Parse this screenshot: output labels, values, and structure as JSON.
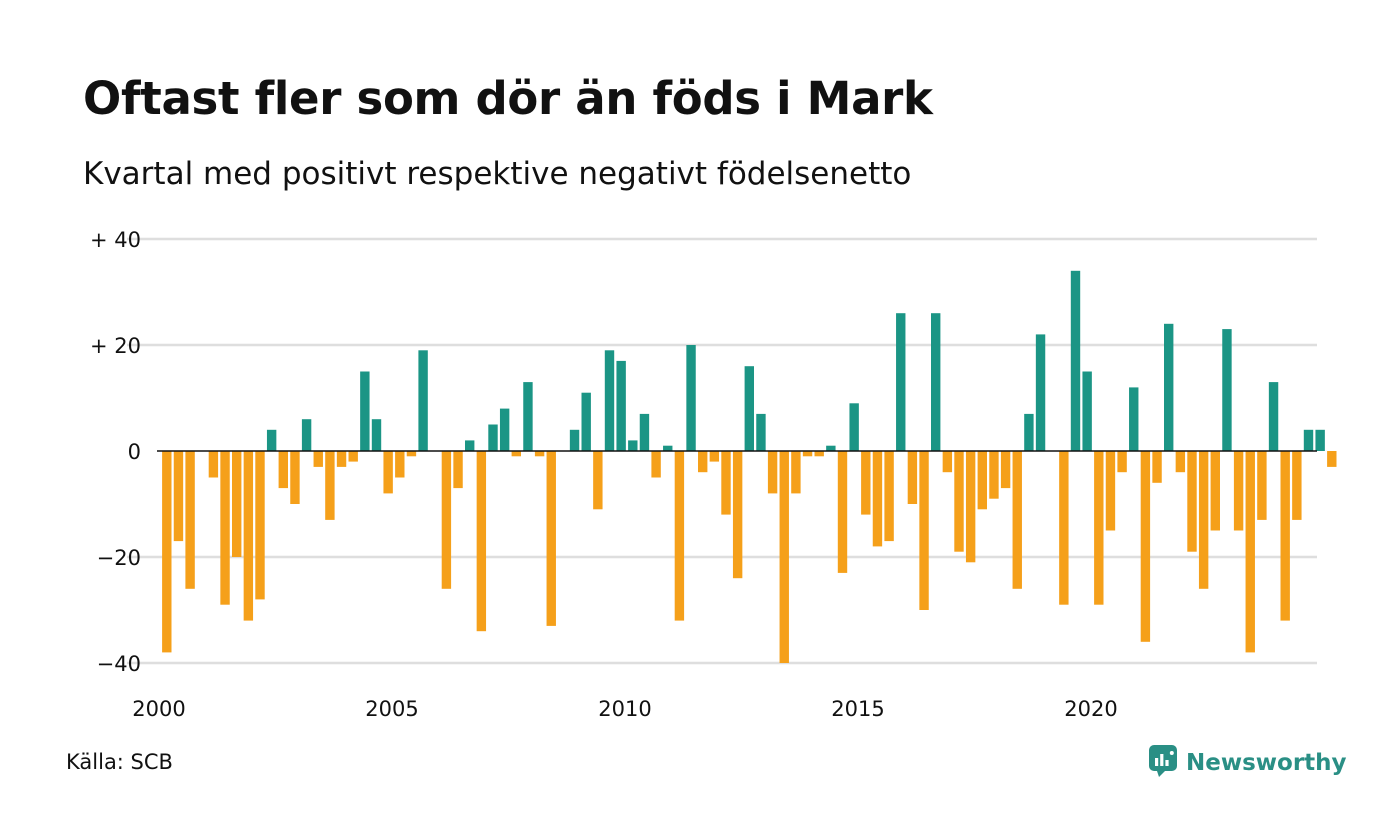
{
  "header": {
    "title": "Oftast fler som dör än föds i Mark",
    "subtitle": "Kvartal med positivt respektive negativt födelsenetto"
  },
  "footer": {
    "source": "Källa: SCB",
    "brand": "Newsworthy",
    "brand_icon": "newsworthy-logo-icon"
  },
  "chart_data": {
    "type": "bar",
    "x_unit": "quarter",
    "start": "2000 Q1",
    "categories": [
      "2000 Q1",
      "2000 Q2",
      "2000 Q3",
      "2000 Q4",
      "2001 Q1",
      "2001 Q2",
      "2001 Q3",
      "2001 Q4",
      "2002 Q1",
      "2002 Q2",
      "2002 Q3",
      "2002 Q4",
      "2003 Q1",
      "2003 Q2",
      "2003 Q3",
      "2003 Q4",
      "2004 Q1",
      "2004 Q2",
      "2004 Q3",
      "2004 Q4",
      "2005 Q1",
      "2005 Q2",
      "2005 Q3",
      "2005 Q4",
      "2006 Q1",
      "2006 Q2",
      "2006 Q3",
      "2006 Q4",
      "2007 Q1",
      "2007 Q2",
      "2007 Q3",
      "2007 Q4",
      "2008 Q1",
      "2008 Q2",
      "2008 Q3",
      "2008 Q4",
      "2009 Q1",
      "2009 Q2",
      "2009 Q3",
      "2009 Q4",
      "2010 Q1",
      "2010 Q2",
      "2010 Q3",
      "2010 Q4",
      "2011 Q1",
      "2011 Q2",
      "2011 Q3",
      "2011 Q4",
      "2012 Q1",
      "2012 Q2",
      "2012 Q3",
      "2012 Q4",
      "2013 Q1",
      "2013 Q2",
      "2013 Q3",
      "2013 Q4",
      "2014 Q1",
      "2014 Q2",
      "2014 Q3",
      "2014 Q4",
      "2015 Q1",
      "2015 Q2",
      "2015 Q3",
      "2015 Q4",
      "2016 Q1",
      "2016 Q2",
      "2016 Q3",
      "2016 Q4",
      "2017 Q1",
      "2017 Q2",
      "2017 Q3",
      "2017 Q4",
      "2018 Q1",
      "2018 Q2",
      "2018 Q3",
      "2018 Q4",
      "2019 Q1",
      "2019 Q2",
      "2019 Q3",
      "2019 Q4",
      "2020 Q1",
      "2020 Q2",
      "2020 Q3",
      "2020 Q4",
      "2021 Q1",
      "2021 Q2",
      "2021 Q3",
      "2021 Q4",
      "2022 Q1",
      "2022 Q2",
      "2022 Q3",
      "2022 Q4",
      "2023 Q1",
      "2023 Q2",
      "2023 Q3",
      "2023 Q4",
      "2024 Q1",
      "2024 Q2",
      "2024 Q3",
      "2024 Q4",
      "2025 Q1",
      "2025 Q2",
      "2025 Q3"
    ],
    "values": [
      -38,
      -17,
      -26,
      0,
      -5,
      -29,
      -20,
      -32,
      -28,
      4,
      -7,
      -10,
      6,
      -3,
      -13,
      -3,
      -2,
      15,
      6,
      -8,
      -5,
      -1,
      19,
      0,
      -26,
      -7,
      2,
      -34,
      5,
      8,
      -1,
      13,
      -1,
      -33,
      0,
      4,
      11,
      -11,
      19,
      17,
      2,
      7,
      -5,
      1,
      -32,
      20,
      -4,
      -2,
      -12,
      -24,
      16,
      7,
      -8,
      -40,
      -8,
      -1,
      -1,
      1,
      -23,
      9,
      -12,
      -18,
      -17,
      26,
      -10,
      -30,
      26,
      -4,
      -19,
      -21,
      -11,
      -9,
      -7,
      -26,
      7,
      22,
      0,
      -29,
      34,
      15,
      -29,
      -15,
      -4,
      12,
      -36,
      -6,
      24,
      -4,
      -19,
      -26,
      -15,
      23,
      -15,
      -38,
      -13,
      13,
      -32,
      -13,
      4,
      4,
      -3,
      0,
      0
    ],
    "colors": {
      "positive": "#1b9585",
      "negative": "#f5a01a"
    },
    "ylim": [
      -40,
      40
    ],
    "y_ticks": [
      {
        "value": 40,
        "label": "+ 40"
      },
      {
        "value": 20,
        "label": "+ 20"
      },
      {
        "value": 0,
        "label": "0"
      },
      {
        "value": -20,
        "label": "−20"
      },
      {
        "value": -40,
        "label": "−40"
      }
    ],
    "x_ticks": [
      "2000",
      "2005",
      "2010",
      "2015",
      "2020"
    ],
    "grid": true,
    "legend": "none"
  }
}
